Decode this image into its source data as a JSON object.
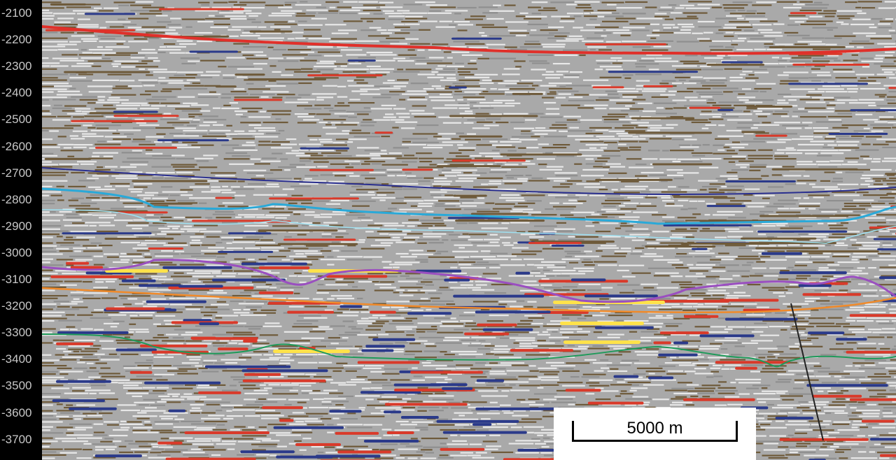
{
  "y_axis": {
    "ticks": [
      "-2100",
      "-2200",
      "-2300",
      "-2400",
      "-2500",
      "-2600",
      "-2700",
      "-2800",
      "-2900",
      "-3000",
      "-3100",
      "-3200",
      "-3300",
      "-3400",
      "-3500",
      "-3600",
      "-3700"
    ],
    "label_color": "#000000",
    "panel_color": "#000000"
  },
  "scale_bar": {
    "label": "5000 m"
  },
  "horizons": [
    {
      "name": "red-horizon",
      "color": "#e0302a"
    },
    {
      "name": "dark-blue-horizon",
      "color": "#2a2f8f"
    },
    {
      "name": "cyan-horizon",
      "color": "#2aa9d8"
    },
    {
      "name": "light-cyan-horizon",
      "color": "#9fe0f0"
    },
    {
      "name": "purple-horizon",
      "color": "#9a4fc0"
    },
    {
      "name": "orange-horizon",
      "color": "#f08a2a"
    },
    {
      "name": "green-horizon",
      "color": "#1f9a5a"
    },
    {
      "name": "fault-line",
      "color": "#222222"
    }
  ],
  "palette": {
    "background": "#a9a9a9",
    "trough": "#2b3a8a",
    "peak": "#d93a2a",
    "bright": "#ffe24a",
    "brown": "#6e5a3a",
    "light": "#e8e8e8"
  }
}
